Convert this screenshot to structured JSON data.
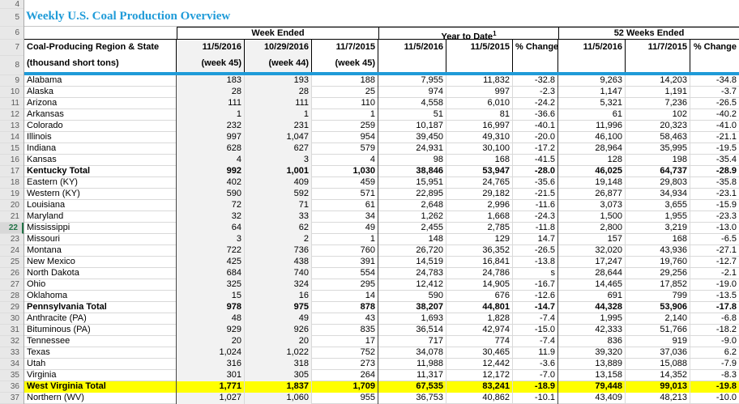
{
  "title": "Weekly U.S. Coal Production Overview",
  "active_row": "22",
  "row_numbers": [
    "4",
    "5",
    "6",
    "7",
    "8",
    "9",
    "10",
    "11",
    "12",
    "13",
    "14",
    "15",
    "16",
    "17",
    "18",
    "19",
    "20",
    "21",
    "22",
    "23",
    "24",
    "25",
    "26",
    "27",
    "28",
    "29",
    "30",
    "31",
    "32",
    "33",
    "34",
    "35",
    "36",
    "37"
  ],
  "header": {
    "region_label": "Coal-Producing Region & State",
    "region_sublabel": "(thousand short tons)",
    "groups": [
      {
        "label": "Week Ended",
        "sup": ""
      },
      {
        "label": "Year to Date",
        "sup": "1"
      },
      {
        "label": "52 Weeks Ended",
        "sup": ""
      }
    ],
    "columns": [
      {
        "line1": "11/5/2016",
        "line2": "(week 45)"
      },
      {
        "line1": "10/29/2016",
        "line2": "(week 44)"
      },
      {
        "line1": "11/7/2015",
        "line2": "(week 45)"
      },
      {
        "line1": "11/5/2016",
        "line2": ""
      },
      {
        "line1": "11/5/2015",
        "line2": ""
      },
      {
        "line1": "% Change",
        "line2": ""
      },
      {
        "line1": "11/5/2016",
        "line2": ""
      },
      {
        "line1": "11/7/2015",
        "line2": ""
      },
      {
        "line1": "% Change",
        "line2": ""
      }
    ]
  },
  "rows": [
    {
      "row_num": "9",
      "state": "Alabama",
      "bold": false,
      "highlight": false,
      "values": [
        "183",
        "193",
        "188",
        "7,955",
        "11,832",
        "-32.8",
        "9,263",
        "14,203",
        "-34.8"
      ]
    },
    {
      "row_num": "10",
      "state": "Alaska",
      "bold": false,
      "highlight": false,
      "values": [
        "28",
        "28",
        "25",
        "974",
        "997",
        "-2.3",
        "1,147",
        "1,191",
        "-3.7"
      ]
    },
    {
      "row_num": "11",
      "state": "Arizona",
      "bold": false,
      "highlight": false,
      "values": [
        "111",
        "111",
        "110",
        "4,558",
        "6,010",
        "-24.2",
        "5,321",
        "7,236",
        "-26.5"
      ]
    },
    {
      "row_num": "12",
      "state": "Arkansas",
      "bold": false,
      "highlight": false,
      "values": [
        "1",
        "1",
        "1",
        "51",
        "81",
        "-36.6",
        "61",
        "102",
        "-40.2"
      ]
    },
    {
      "row_num": "13",
      "state": "Colorado",
      "bold": false,
      "highlight": false,
      "values": [
        "232",
        "231",
        "259",
        "10,187",
        "16,997",
        "-40.1",
        "11,996",
        "20,323",
        "-41.0"
      ]
    },
    {
      "row_num": "14",
      "state": "Illinois",
      "bold": false,
      "highlight": false,
      "values": [
        "997",
        "1,047",
        "954",
        "39,450",
        "49,310",
        "-20.0",
        "46,100",
        "58,463",
        "-21.1"
      ]
    },
    {
      "row_num": "15",
      "state": "Indiana",
      "bold": false,
      "highlight": false,
      "values": [
        "628",
        "627",
        "579",
        "24,931",
        "30,100",
        "-17.2",
        "28,964",
        "35,995",
        "-19.5"
      ]
    },
    {
      "row_num": "16",
      "state": "Kansas",
      "bold": false,
      "highlight": false,
      "values": [
        "4",
        "3",
        "4",
        "98",
        "168",
        "-41.5",
        "128",
        "198",
        "-35.4"
      ]
    },
    {
      "row_num": "17",
      "state": "Kentucky Total",
      "bold": true,
      "highlight": false,
      "values": [
        "992",
        "1,001",
        "1,030",
        "38,846",
        "53,947",
        "-28.0",
        "46,025",
        "64,737",
        "-28.9"
      ]
    },
    {
      "row_num": "18",
      "state": "Eastern (KY)",
      "bold": false,
      "highlight": false,
      "values": [
        "402",
        "409",
        "459",
        "15,951",
        "24,765",
        "-35.6",
        "19,148",
        "29,803",
        "-35.8"
      ]
    },
    {
      "row_num": "19",
      "state": "Western (KY)",
      "bold": false,
      "highlight": false,
      "values": [
        "590",
        "592",
        "571",
        "22,895",
        "29,182",
        "-21.5",
        "26,877",
        "34,934",
        "-23.1"
      ]
    },
    {
      "row_num": "20",
      "state": "Louisiana",
      "bold": false,
      "highlight": false,
      "values": [
        "72",
        "71",
        "61",
        "2,648",
        "2,996",
        "-11.6",
        "3,073",
        "3,655",
        "-15.9"
      ]
    },
    {
      "row_num": "21",
      "state": "Maryland",
      "bold": false,
      "highlight": false,
      "values": [
        "32",
        "33",
        "34",
        "1,262",
        "1,668",
        "-24.3",
        "1,500",
        "1,955",
        "-23.3"
      ]
    },
    {
      "row_num": "22",
      "state": "Mississippi",
      "bold": false,
      "highlight": false,
      "values": [
        "64",
        "62",
        "49",
        "2,455",
        "2,785",
        "-11.8",
        "2,800",
        "3,219",
        "-13.0"
      ]
    },
    {
      "row_num": "23",
      "state": "Missouri",
      "bold": false,
      "highlight": false,
      "values": [
        "3",
        "2",
        "1",
        "148",
        "129",
        "14.7",
        "157",
        "168",
        "-6.5"
      ]
    },
    {
      "row_num": "24",
      "state": "Montana",
      "bold": false,
      "highlight": false,
      "values": [
        "722",
        "736",
        "760",
        "26,720",
        "36,352",
        "-26.5",
        "32,020",
        "43,936",
        "-27.1"
      ]
    },
    {
      "row_num": "25",
      "state": "New Mexico",
      "bold": false,
      "highlight": false,
      "values": [
        "425",
        "438",
        "391",
        "14,519",
        "16,841",
        "-13.8",
        "17,247",
        "19,760",
        "-12.7"
      ]
    },
    {
      "row_num": "26",
      "state": "North Dakota",
      "bold": false,
      "highlight": false,
      "values": [
        "684",
        "740",
        "554",
        "24,783",
        "24,786",
        "s",
        "28,644",
        "29,256",
        "-2.1"
      ]
    },
    {
      "row_num": "27",
      "state": "Ohio",
      "bold": false,
      "highlight": false,
      "values": [
        "325",
        "324",
        "295",
        "12,412",
        "14,905",
        "-16.7",
        "14,465",
        "17,852",
        "-19.0"
      ]
    },
    {
      "row_num": "28",
      "state": "Oklahoma",
      "bold": false,
      "highlight": false,
      "values": [
        "15",
        "16",
        "14",
        "590",
        "676",
        "-12.6",
        "691",
        "799",
        "-13.5"
      ]
    },
    {
      "row_num": "29",
      "state": "Pennsylvania Total",
      "bold": true,
      "highlight": false,
      "values": [
        "978",
        "975",
        "878",
        "38,207",
        "44,801",
        "-14.7",
        "44,328",
        "53,906",
        "-17.8"
      ]
    },
    {
      "row_num": "30",
      "state": "Anthracite (PA)",
      "bold": false,
      "highlight": false,
      "values": [
        "48",
        "49",
        "43",
        "1,693",
        "1,828",
        "-7.4",
        "1,995",
        "2,140",
        "-6.8"
      ]
    },
    {
      "row_num": "31",
      "state": "Bituminous (PA)",
      "bold": false,
      "highlight": false,
      "values": [
        "929",
        "926",
        "835",
        "36,514",
        "42,974",
        "-15.0",
        "42,333",
        "51,766",
        "-18.2"
      ]
    },
    {
      "row_num": "32",
      "state": "Tennessee",
      "bold": false,
      "highlight": false,
      "values": [
        "20",
        "20",
        "17",
        "717",
        "774",
        "-7.4",
        "836",
        "919",
        "-9.0"
      ]
    },
    {
      "row_num": "33",
      "state": "Texas",
      "bold": false,
      "highlight": false,
      "values": [
        "1,024",
        "1,022",
        "752",
        "34,078",
        "30,465",
        "11.9",
        "39,320",
        "37,036",
        "6.2"
      ]
    },
    {
      "row_num": "34",
      "state": "Utah",
      "bold": false,
      "highlight": false,
      "values": [
        "316",
        "318",
        "273",
        "11,988",
        "12,442",
        "-3.6",
        "13,889",
        "15,088",
        "-7.9"
      ]
    },
    {
      "row_num": "35",
      "state": "Virginia",
      "bold": false,
      "highlight": false,
      "values": [
        "301",
        "305",
        "264",
        "11,317",
        "12,172",
        "-7.0",
        "13,158",
        "14,352",
        "-8.3"
      ]
    },
    {
      "row_num": "36",
      "state": "West Virginia Total",
      "bold": true,
      "highlight": true,
      "values": [
        "1,771",
        "1,837",
        "1,709",
        "67,535",
        "83,241",
        "-18.9",
        "79,448",
        "99,013",
        "-19.8"
      ]
    },
    {
      "row_num": "37",
      "state": "Northern (WV)",
      "bold": false,
      "highlight": false,
      "values": [
        "1,027",
        "1,060",
        "955",
        "36,753",
        "40,862",
        "-10.1",
        "43,409",
        "48,213",
        "-10.0"
      ]
    }
  ],
  "colors": {
    "accent_blue": "#1F9BD8",
    "title_blue": "#1F9BD8",
    "highlight_yellow": "#FFFF00",
    "shaded_column": "#F2F2F2",
    "active_row_green": "#217346",
    "gutter_gray": "#E8E8E8"
  }
}
